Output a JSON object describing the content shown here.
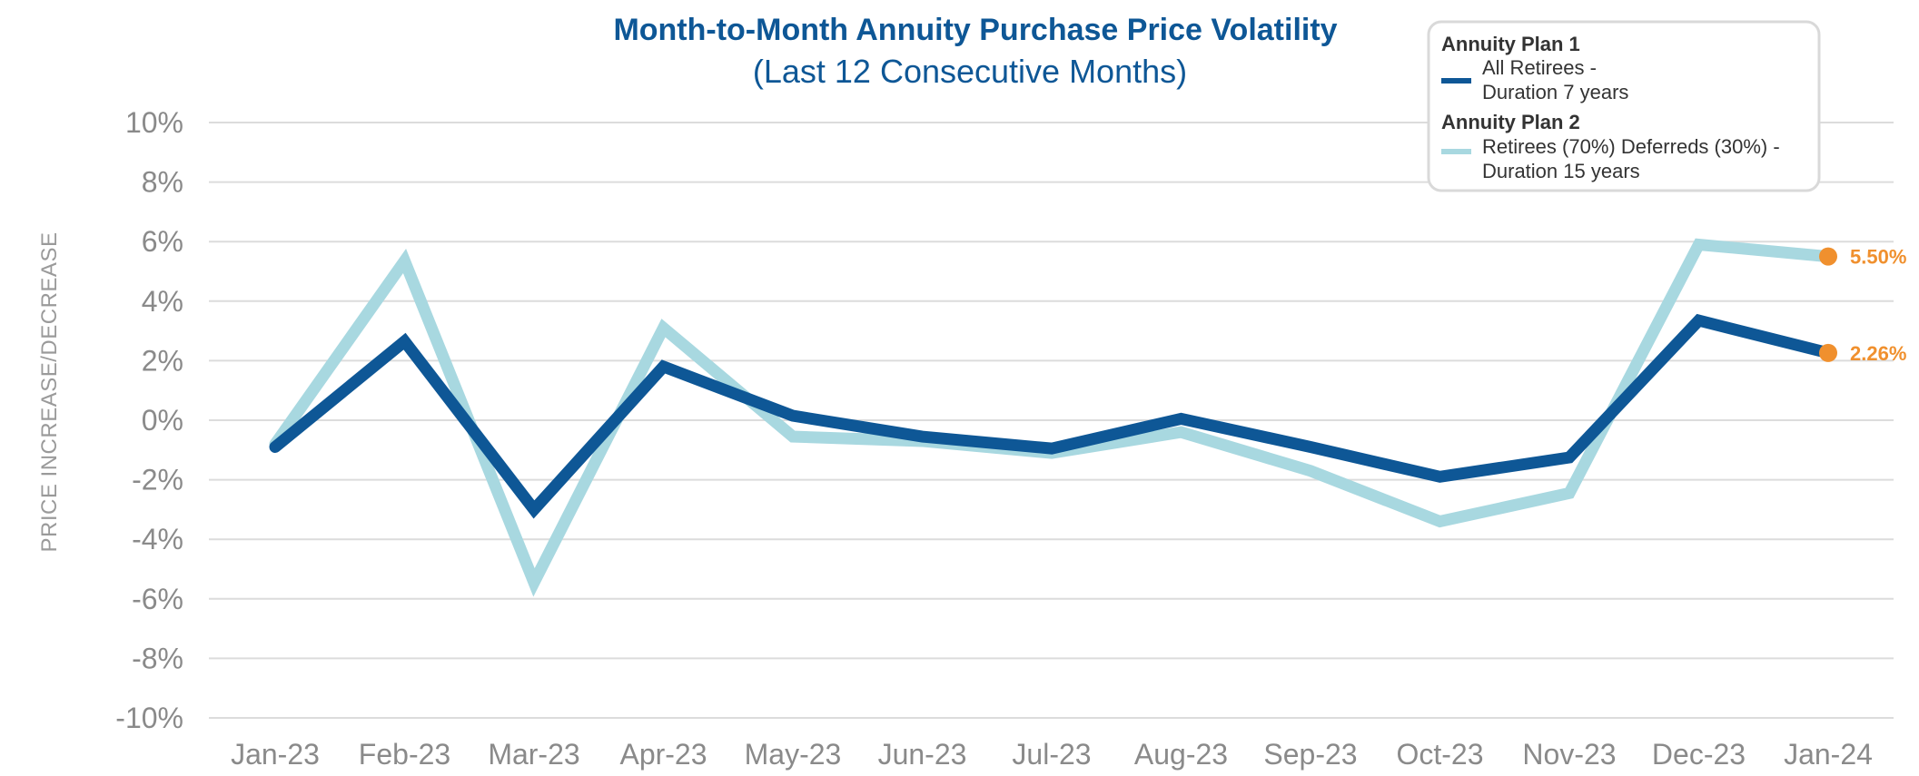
{
  "chart_data": {
    "type": "line",
    "title": "Month-to-Month Annuity Purchase Price Volatility",
    "subtitle": "(Last 12 Consecutive Months)",
    "ylabel": "PRICE INCREASE/DECREASE",
    "xlabel": "",
    "ylim": [
      -10,
      10
    ],
    "yticks": [
      10,
      8,
      6,
      4,
      2,
      0,
      -2,
      -4,
      -6,
      -8,
      -10
    ],
    "ytick_labels": [
      "10%",
      "8%",
      "6%",
      "4%",
      "2%",
      "0%",
      "-2%",
      "-4%",
      "-6%",
      "-8%",
      "-10%"
    ],
    "grid": true,
    "categories": [
      "Jan-23",
      "Feb-23",
      "Mar-23",
      "Apr-23",
      "May-23",
      "Jun-23",
      "Jul-23",
      "Aug-23",
      "Sep-23",
      "Oct-23",
      "Nov-23",
      "Dec-23",
      "Jan-24"
    ],
    "series": [
      {
        "name": "Annuity Plan 1",
        "description_line1": "All Retirees -",
        "description_line2": "Duration 7 years",
        "color": "#0e5796",
        "values": [
          -0.9,
          2.65,
          -3.0,
          1.8,
          0.15,
          -0.55,
          -0.95,
          0.05,
          -0.9,
          -1.9,
          -1.25,
          3.35,
          2.26
        ],
        "end_label": "2.26%"
      },
      {
        "name": "Annuity Plan 2",
        "description_line1": "Retirees (70%) Deferreds (30%) -",
        "description_line2": "Duration 15 years",
        "color": "#a8d8e0",
        "values": [
          -0.8,
          5.35,
          -5.45,
          3.1,
          -0.55,
          -0.7,
          -1.1,
          -0.4,
          -1.7,
          -3.4,
          -2.45,
          5.9,
          5.5
        ],
        "end_label": "5.50%"
      }
    ],
    "end_marker_color": "#f0902e",
    "legend_position": "top-right"
  }
}
